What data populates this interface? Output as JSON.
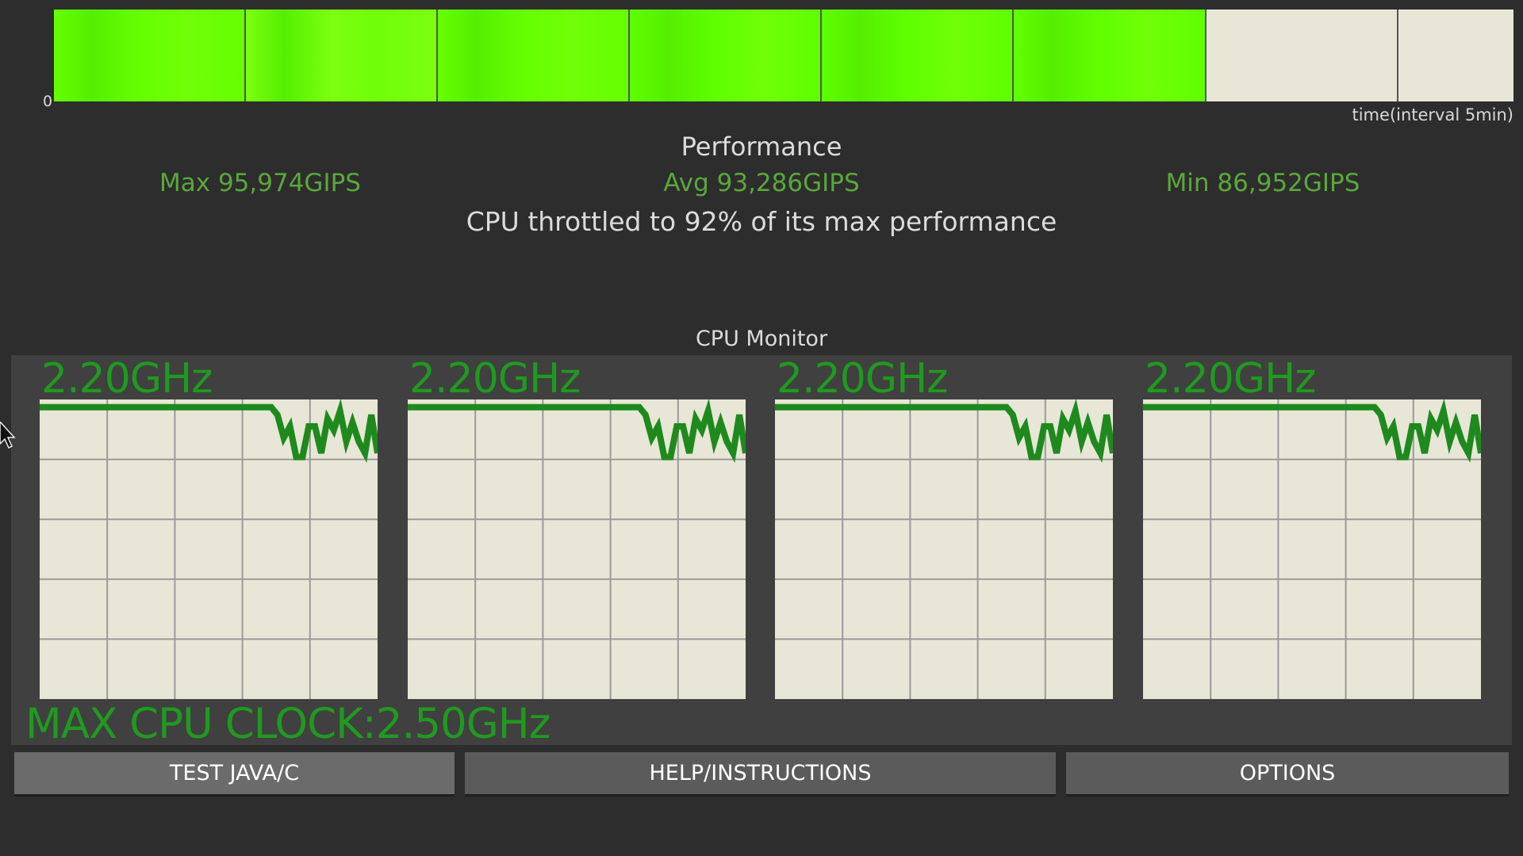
{
  "performance_bar": {
    "zero_label": "0",
    "time_label": "time(interval 5min)",
    "segments": [
      {
        "fill": 1.0,
        "color": "#66ff00"
      },
      {
        "fill": 1.0,
        "color": "#7cff10"
      },
      {
        "fill": 1.0,
        "color": "#66ff00"
      },
      {
        "fill": 1.0,
        "color": "#5eff00"
      },
      {
        "fill": 1.0,
        "color": "#5eff00"
      },
      {
        "fill": 1.0,
        "color": "#60ff00"
      },
      {
        "fill": 0.0,
        "color": "#e8e6d6"
      },
      {
        "fill": 0.0,
        "color": "#e8e6d6"
      }
    ]
  },
  "performance": {
    "title": "Performance",
    "max": "Max 95,974GIPS",
    "avg": "Avg 93,286GIPS",
    "min": "Min 86,952GIPS",
    "throttle": "CPU throttled to 92% of its max performance"
  },
  "cpu_monitor": {
    "title": "CPU Monitor",
    "max_clock": "MAX CPU CLOCK:2.50GHz",
    "cores": [
      {
        "freq": "2.20GHz"
      },
      {
        "freq": "2.20GHz"
      },
      {
        "freq": "2.20GHz"
      },
      {
        "freq": "2.20GHz"
      }
    ],
    "trace_max_ghz": 2.5,
    "trace_ghz": [
      2.46,
      2.46,
      2.46,
      2.46,
      2.46,
      2.46,
      2.46,
      2.46,
      2.46,
      2.46,
      2.46,
      2.46,
      2.46,
      2.46,
      2.46,
      2.46,
      2.46,
      2.46,
      2.46,
      2.46,
      2.46,
      2.46,
      2.46,
      2.46,
      2.46,
      2.46,
      2.46,
      2.46,
      2.46,
      2.46,
      2.46,
      2.46,
      2.46,
      2.46,
      2.46,
      2.46,
      2.46,
      2.46,
      2.42,
      2.3,
      2.36,
      2.2,
      2.2,
      2.36,
      2.36,
      2.22,
      2.4,
      2.34,
      2.44,
      2.28,
      2.38,
      2.28,
      2.22,
      2.42,
      2.22
    ],
    "line_color": "#1e8a1e"
  },
  "buttons": {
    "test": "TEST JAVA/C",
    "help": "HELP/INSTRUCTIONS",
    "options": "OPTIONS"
  }
}
